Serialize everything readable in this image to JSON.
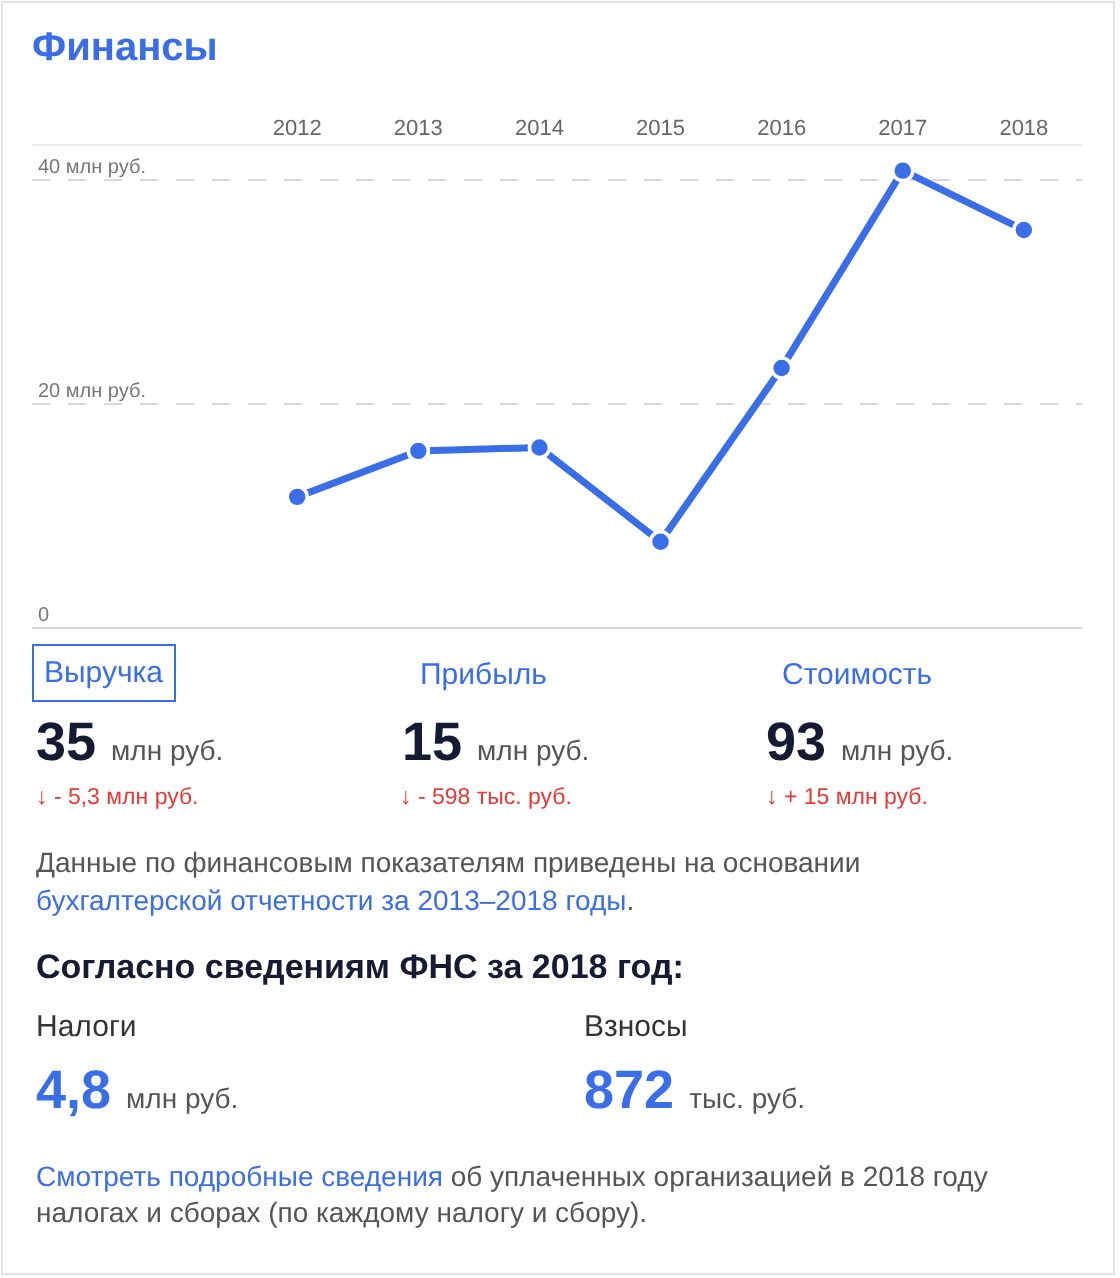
{
  "chart_data": {
    "type": "line",
    "title": "Финансы",
    "categories": [
      "2012",
      "2013",
      "2014",
      "2015",
      "2016",
      "2017",
      "2018"
    ],
    "values": [
      11.7,
      15.8,
      16.1,
      7.7,
      23.2,
      40.8,
      35.5
    ],
    "color": "#3a6ee8",
    "marker": "circle",
    "line_style": "solid",
    "grid": "y",
    "legend": false,
    "ylim": [
      0,
      43
    ],
    "yticks": [
      0,
      {
        "value": 20,
        "label": "20 млн руб."
      },
      {
        "value": 40,
        "label": "40 млн руб."
      }
    ],
    "annotations": [
      "Выручка",
      "Прибыль",
      "Стоимость",
      "35 млн руб.",
      "15 млн руб.",
      "93 млн руб.",
      "↓ - 5,3 млн руб.",
      "↓ - 598 тыс. руб.",
      "↓ + 15 млн руб.",
      "Данные по финансовым показателям приведены на основании",
      "бухгалтерской отчетности за 2013–2018 годы.",
      "Согласно сведениям ФНС за 2018 год:",
      "Налоги",
      "Взносы",
      "4,8 млн руб.",
      "872 тыс. руб.",
      "Смотреть подробные сведения об уплаченных организацией в 2018 году",
      "налогах и сборах (по каждому налогу и сбору)."
    ]
  }
}
